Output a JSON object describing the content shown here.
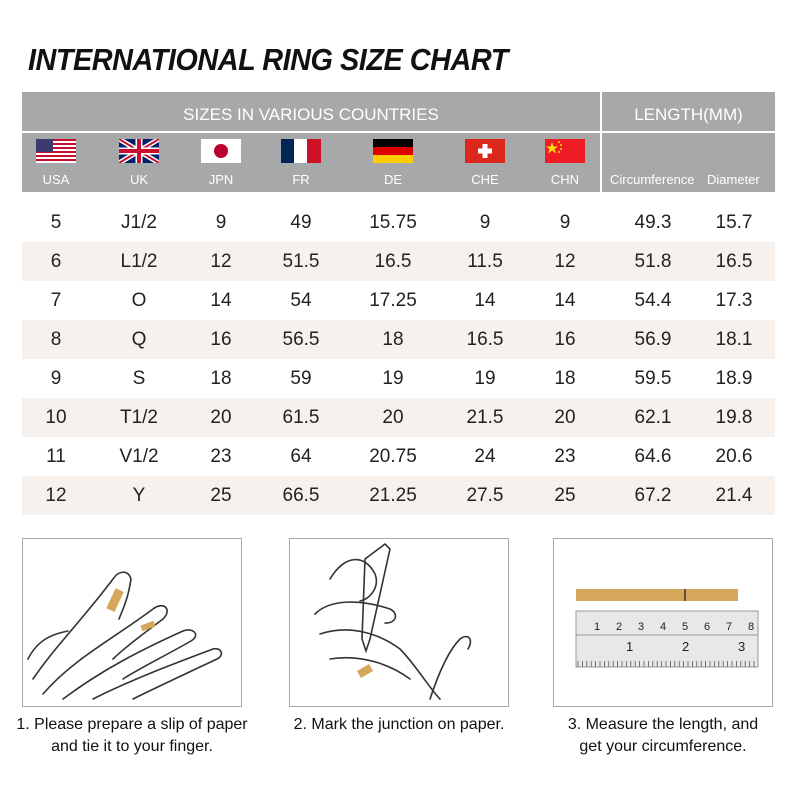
{
  "title": "INTERNATIONAL RING SIZE CHART",
  "header": {
    "sizes_label": "SIZES IN VARIOUS COUNTRIES",
    "length_label": "LENGTH(MM)",
    "countries": [
      {
        "code": "USA",
        "flag": "us-flag-icon"
      },
      {
        "code": "UK",
        "flag": "uk-flag-icon"
      },
      {
        "code": "JPN",
        "flag": "japan-flag-icon"
      },
      {
        "code": "FR",
        "flag": "france-flag-icon"
      },
      {
        "code": "DE",
        "flag": "germany-flag-icon"
      },
      {
        "code": "CHE",
        "flag": "switzerland-flag-icon"
      },
      {
        "code": "CHN",
        "flag": "china-flag-icon"
      }
    ],
    "circumference": "Circumference",
    "diameter": "Diameter"
  },
  "rows": [
    [
      "5",
      "J1/2",
      "9",
      "49",
      "15.75",
      "9",
      "9",
      "49.3",
      "15.7"
    ],
    [
      "6",
      "L1/2",
      "12",
      "51.5",
      "16.5",
      "11.5",
      "12",
      "51.8",
      "16.5"
    ],
    [
      "7",
      "O",
      "14",
      "54",
      "17.25",
      "14",
      "14",
      "54.4",
      "17.3"
    ],
    [
      "8",
      "Q",
      "16",
      "56.5",
      "18",
      "16.5",
      "16",
      "56.9",
      "18.1"
    ],
    [
      "9",
      "S",
      "18",
      "59",
      "19",
      "19",
      "18",
      "59.5",
      "18.9"
    ],
    [
      "10",
      "T1/2",
      "20",
      "61.5",
      "20",
      "21.5",
      "20",
      "62.1",
      "19.8"
    ],
    [
      "11",
      "V1/2",
      "23",
      "64",
      "20.75",
      "24",
      "23",
      "64.6",
      "20.6"
    ],
    [
      "12",
      "Y",
      "25",
      "66.5",
      "21.25",
      "27.5",
      "25",
      "67.2",
      "21.4"
    ]
  ],
  "steps": [
    {
      "line1": "1. Please prepare a slip of paper",
      "line2": "and tie it to your finger."
    },
    {
      "line1": "2. Mark the junction on paper.",
      "line2": ""
    },
    {
      "line1": "3. Measure the length, and",
      "line2": "get your circumference."
    }
  ],
  "ruler": {
    "top_marks": [
      "1",
      "2",
      "3",
      "4",
      "5",
      "6",
      "7",
      "8"
    ],
    "bottom_marks": [
      "1",
      "2",
      "3"
    ]
  },
  "colors": {
    "header_bg": "#a7a8aa",
    "alt_row": "#f6f1ed",
    "paper_strip": "#d4a75a"
  }
}
